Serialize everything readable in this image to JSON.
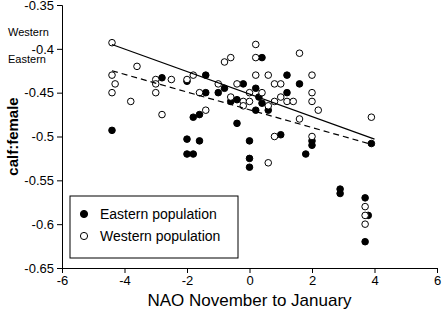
{
  "chart_data": {
    "type": "scatter",
    "x_label": "NAO November to January",
    "y_label": "calf:female",
    "xlim": [
      -6,
      6
    ],
    "xticks": [
      -6,
      -4,
      -2,
      0,
      2,
      4,
      6
    ],
    "ylim": [
      -0.65,
      -0.35
    ],
    "yticks": [
      -0.65,
      -0.6,
      -0.55,
      -0.5,
      -0.45,
      -0.4,
      -0.35
    ],
    "legend": "lower left",
    "series": [
      {
        "name": "Eastern population",
        "type": "scatter",
        "marker": "filled-circle",
        "color": "#000000",
        "x": [
          -4.4,
          -2.8,
          -2.0,
          -2.0,
          -2.0,
          -1.8,
          -1.8,
          -1.6,
          -1.6,
          -1.4,
          -1.4,
          -1.0,
          -0.8,
          -0.6,
          -0.4,
          -0.4,
          -0.2,
          0.0,
          0.0,
          0.0,
          0.2,
          0.2,
          0.3,
          0.4,
          0.4,
          0.6,
          1.0,
          1.2,
          1.2,
          1.6,
          1.8,
          2.0,
          2.0,
          2.9,
          2.9,
          3.7,
          3.7,
          3.8,
          3.9
        ],
        "values": [
          -0.493,
          -0.433,
          -0.437,
          -0.503,
          -0.52,
          -0.52,
          -0.478,
          -0.475,
          -0.505,
          -0.45,
          -0.43,
          -0.45,
          -0.445,
          -0.46,
          -0.485,
          -0.458,
          -0.44,
          -0.505,
          -0.525,
          -0.535,
          -0.47,
          -0.445,
          -0.455,
          -0.462,
          -0.41,
          -0.47,
          -0.498,
          -0.45,
          -0.43,
          -0.44,
          -0.52,
          -0.505,
          -0.51,
          -0.56,
          -0.565,
          -0.57,
          -0.62,
          -0.59,
          -0.508
        ]
      },
      {
        "name": "Western population",
        "type": "scatter",
        "marker": "open-circle",
        "color": "#000000",
        "x": [
          -4.4,
          -4.4,
          -4.4,
          -4.3,
          -3.8,
          -3.6,
          -3.0,
          -3.0,
          -3.0,
          -2.8,
          -2.5,
          -2.0,
          -1.8,
          -1.6,
          -1.4,
          -1.0,
          -0.8,
          -0.6,
          -0.6,
          -0.4,
          -0.2,
          -0.2,
          0.0,
          0.0,
          0.2,
          0.2,
          0.2,
          0.4,
          0.6,
          0.6,
          0.8,
          0.8,
          1.0,
          1.0,
          1.2,
          1.4,
          1.6,
          1.6,
          2.0,
          2.0,
          2.0,
          2.2,
          2.0,
          0.6,
          0.8,
          3.7,
          3.7,
          3.7,
          3.9
        ],
        "values": [
          -0.393,
          -0.43,
          -0.45,
          -0.44,
          -0.46,
          -0.42,
          -0.435,
          -0.44,
          -0.45,
          -0.475,
          -0.435,
          -0.435,
          -0.43,
          -0.45,
          -0.47,
          -0.44,
          -0.415,
          -0.41,
          -0.455,
          -0.44,
          -0.46,
          -0.465,
          -0.45,
          -0.46,
          -0.395,
          -0.41,
          -0.43,
          -0.45,
          -0.465,
          -0.43,
          -0.44,
          -0.46,
          -0.455,
          -0.44,
          -0.46,
          -0.46,
          -0.405,
          -0.48,
          -0.43,
          -0.45,
          -0.46,
          -0.47,
          -0.5,
          -0.53,
          -0.5,
          -0.58,
          -0.59,
          -0.6,
          -0.478
        ]
      },
      {
        "name": "Western",
        "type": "line",
        "line_style": "solid",
        "color": "#000000",
        "x": [
          -4.4,
          4.0
        ],
        "values": [
          -0.395,
          -0.503
        ]
      },
      {
        "name": "Eastern",
        "type": "line",
        "line_style": "dashed",
        "color": "#000000",
        "x": [
          -4.4,
          4.0
        ],
        "values": [
          -0.425,
          -0.51
        ]
      }
    ]
  }
}
